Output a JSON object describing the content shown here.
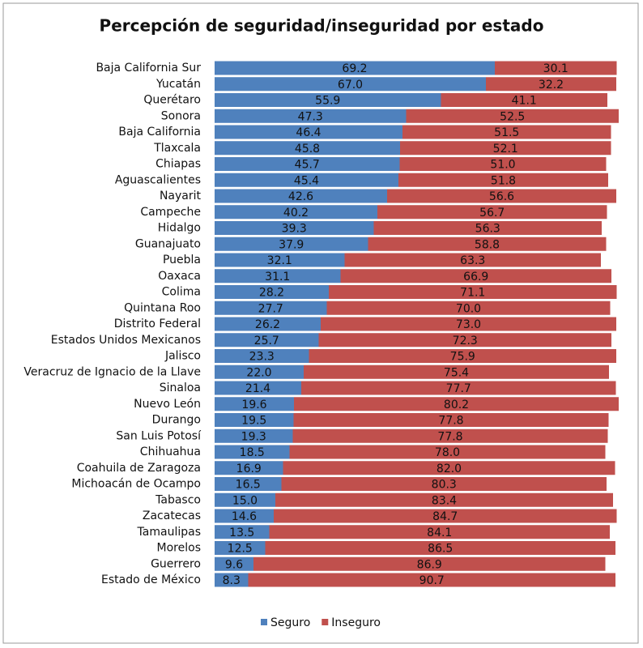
{
  "chart_data": {
    "type": "stacked-bar-horizontal",
    "title": "Percepción de seguridad/inseguridad por estado",
    "categories": [
      "Baja California Sur",
      "Yucatán",
      "Querétaro",
      "Sonora",
      "Baja California",
      "Tlaxcala",
      "Chiapas",
      "Aguascalientes",
      "Nayarit",
      "Campeche",
      "Hidalgo",
      "Guanajuato",
      "Puebla",
      "Oaxaca",
      "Colima",
      "Quintana Roo",
      "Distrito Federal",
      "Estados Unidos Mexicanos",
      "Jalisco",
      "Veracruz de Ignacio de la Llave",
      "Sinaloa",
      "Nuevo León",
      "Durango",
      "San Luis Potosí",
      "Chihuahua",
      "Coahuila de Zaragoza",
      "Michoacán de Ocampo",
      "Tabasco",
      "Zacatecas",
      "Tamaulipas",
      "Morelos",
      "Guerrero",
      "Estado de México"
    ],
    "series": [
      {
        "name": "Seguro",
        "color": "#4f81bd",
        "values": [
          69.2,
          67,
          55.9,
          47.3,
          46.4,
          45.8,
          45.7,
          45.4,
          42.6,
          40.2,
          39.3,
          37.9,
          32.1,
          31.1,
          28.2,
          27.7,
          26.2,
          25.7,
          23.3,
          22,
          21.4,
          19.6,
          19.5,
          19.3,
          18.5,
          16.9,
          16.5,
          15,
          14.6,
          13.5,
          12.5,
          9.6,
          8.3
        ],
        "value_labels": [
          "69.2",
          "67.0",
          "55.9",
          "47.3",
          "46.4",
          "45.8",
          "45.7",
          "45.4",
          "42.6",
          "40.2",
          "39.3",
          "37.9",
          "32.1",
          "31.1",
          "28.2",
          "27.7",
          "26.2",
          "25.7",
          "23.3",
          "22.0",
          "21.4",
          "19.6",
          "19.5",
          "19.3",
          "18.5",
          "16.9",
          "16.5",
          "15.0",
          "14.6",
          "13.5",
          "12.5",
          "9.6",
          "8.3"
        ]
      },
      {
        "name": "Inseguro",
        "color": "#c0504d",
        "values": [
          30.1,
          32.2,
          41.1,
          52.5,
          51.5,
          52.1,
          51,
          51.8,
          56.6,
          56.7,
          56.3,
          58.8,
          63.3,
          66.9,
          71.1,
          70,
          73,
          72.3,
          75.9,
          75.4,
          77.7,
          80.2,
          77.8,
          77.8,
          78,
          82,
          80.3,
          83.4,
          84.7,
          84.1,
          86.5,
          86.9,
          90.7
        ],
        "value_labels": [
          "30.1",
          "32.2",
          "41.1",
          "52.5",
          "51.5",
          "52.1",
          "51.0",
          "51.8",
          "56.6",
          "56.7",
          "56.3",
          "58.8",
          "63.3",
          "66.9",
          "71.1",
          "70.0",
          "73.0",
          "72.3",
          "75.9",
          "75.4",
          "77.7",
          "80.2",
          "77.8",
          "77.8",
          "78.0",
          "82.0",
          "80.3",
          "83.4",
          "84.7",
          "84.1",
          "86.5",
          "86.9",
          "90.7"
        ]
      }
    ],
    "legend": "bottom"
  }
}
